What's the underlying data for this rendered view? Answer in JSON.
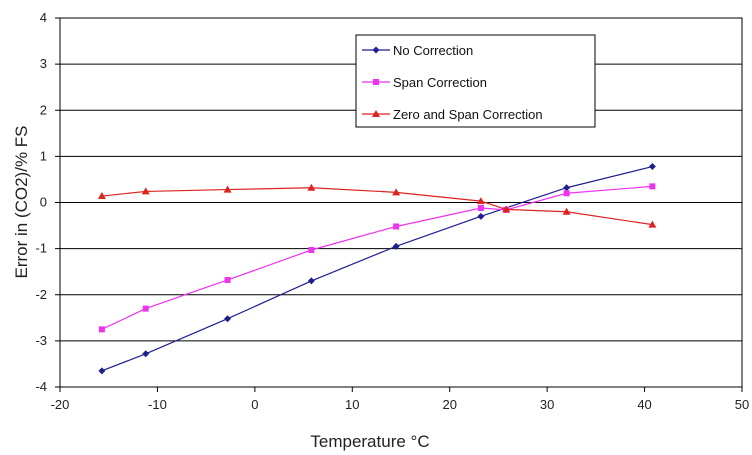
{
  "chart_data": {
    "type": "line",
    "title": "",
    "xlabel": "Temperature °C",
    "ylabel": "Error in (CO2)/% FS",
    "xlim": [
      -20,
      50
    ],
    "ylim": [
      -4,
      4
    ],
    "xticks": [
      "-20",
      "-10",
      "0",
      "10",
      "20",
      "30",
      "40",
      "50"
    ],
    "yticks": [
      "4",
      "3",
      "2",
      "1",
      "0",
      "-1",
      "-2",
      "-3",
      "-4"
    ],
    "grid": "horizontal",
    "legend_position": "top-right",
    "series": [
      {
        "name": "No Correction",
        "color": "#1f1f8f",
        "marker": "diamond",
        "x": [
          -15.7,
          -11.2,
          -2.8,
          5.8,
          14.5,
          23.2,
          32.0,
          40.8
        ],
        "y": [
          -3.65,
          -3.28,
          -2.52,
          -1.7,
          -0.95,
          -0.3,
          0.32,
          0.78
        ]
      },
      {
        "name": "Span Correction",
        "color": "#ee33ee",
        "marker": "square",
        "x": [
          -15.7,
          -11.2,
          -2.8,
          5.8,
          14.5,
          23.2,
          25.8,
          32.0,
          40.8
        ],
        "y": [
          -2.75,
          -2.3,
          -1.68,
          -1.03,
          -0.52,
          -0.12,
          -0.16,
          0.2,
          0.35
        ]
      },
      {
        "name": "Zero and Span Correction",
        "color": "#dd2222",
        "marker": "triangle",
        "x": [
          -15.7,
          -11.2,
          -2.8,
          5.8,
          14.5,
          23.2,
          25.8,
          32.0,
          40.8
        ],
        "y": [
          0.14,
          0.24,
          0.28,
          0.32,
          0.22,
          0.03,
          -0.15,
          -0.2,
          -0.48
        ]
      }
    ]
  }
}
